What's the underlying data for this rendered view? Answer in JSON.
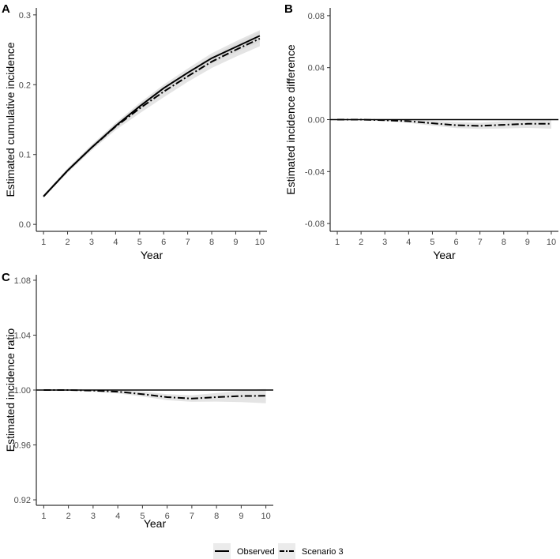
{
  "chart_data": [
    {
      "panel_label": "A",
      "type": "line",
      "xlabel": "Year",
      "ylabel": "Estimated cumulative incidence",
      "x": [
        1,
        2,
        3,
        4,
        5,
        6,
        7,
        8,
        9,
        10
      ],
      "xlim": [
        0.7,
        10.3
      ],
      "ylim": [
        -0.01,
        0.31
      ],
      "yticks": [
        0.0,
        0.1,
        0.2,
        0.3
      ],
      "ytick_labels": [
        "0.0",
        "0.1",
        "0.2",
        "0.3"
      ],
      "reference_line": null,
      "series": [
        {
          "name": "Observed",
          "style": "solid",
          "values": [
            0.04,
            0.077,
            0.11,
            0.141,
            0.169,
            0.195,
            0.217,
            0.238,
            0.254,
            0.27
          ],
          "ci_lower": [
            0.038,
            0.074,
            0.107,
            0.137,
            0.164,
            0.189,
            0.21,
            0.23,
            0.246,
            0.261
          ],
          "ci_upper": [
            0.042,
            0.08,
            0.113,
            0.145,
            0.174,
            0.2,
            0.223,
            0.245,
            0.262,
            0.278
          ]
        },
        {
          "name": "Scenario 3",
          "style": "dashdot",
          "values": [
            0.04,
            0.077,
            0.11,
            0.14,
            0.166,
            0.19,
            0.212,
            0.233,
            0.25,
            0.266
          ],
          "ci_lower": [
            0.038,
            0.074,
            0.106,
            0.135,
            0.159,
            0.182,
            0.204,
            0.224,
            0.24,
            0.255
          ],
          "ci_upper": [
            0.042,
            0.08,
            0.114,
            0.145,
            0.172,
            0.197,
            0.219,
            0.241,
            0.259,
            0.276
          ]
        }
      ]
    },
    {
      "panel_label": "B",
      "type": "line",
      "xlabel": "Year",
      "ylabel": "Estimated incidence difference",
      "x": [
        1,
        2,
        3,
        4,
        5,
        6,
        7,
        8,
        9,
        10
      ],
      "xlim": [
        0.7,
        10.3
      ],
      "ylim": [
        -0.086,
        0.086
      ],
      "yticks": [
        -0.08,
        -0.04,
        0.0,
        0.04,
        0.08
      ],
      "ytick_labels": [
        "-0.08",
        "-0.04",
        "0.00",
        "0.04",
        "0.08"
      ],
      "reference_line": 0,
      "series": [
        {
          "name": "Scenario 3",
          "style": "dashdot",
          "values": [
            0,
            0,
            -0.0005,
            -0.0012,
            -0.0028,
            -0.0043,
            -0.0048,
            -0.004,
            -0.0032,
            -0.0032
          ],
          "ci_lower": [
            0,
            -0.0003,
            -0.0012,
            -0.0025,
            -0.0046,
            -0.0065,
            -0.0072,
            -0.0068,
            -0.0064,
            -0.007
          ],
          "ci_upper": [
            0,
            0.0002,
            0.0001,
            0,
            -0.0008,
            -0.002,
            -0.0024,
            -0.0012,
            -0.0002,
            0.0004
          ]
        }
      ]
    },
    {
      "panel_label": "C",
      "type": "line",
      "xlabel": "Year",
      "ylabel": "Estimated incidence ratio",
      "x": [
        1,
        2,
        3,
        4,
        5,
        6,
        7,
        8,
        9,
        10
      ],
      "xlim": [
        0.7,
        10.3
      ],
      "ylim": [
        0.916,
        1.084
      ],
      "yticks": [
        0.92,
        0.96,
        1.0,
        1.04,
        1.08
      ],
      "ytick_labels": [
        "0.92",
        "0.96",
        "1.00",
        "1.04",
        "1.08"
      ],
      "reference_line": 1,
      "series": [
        {
          "name": "Scenario 3",
          "style": "dashdot",
          "values": [
            1.0,
            1.0,
            0.9996,
            0.9988,
            0.997,
            0.9948,
            0.9938,
            0.9948,
            0.9956,
            0.9958
          ],
          "ci_lower": [
            1.0,
            0.9997,
            0.9988,
            0.9976,
            0.9952,
            0.9926,
            0.9914,
            0.9916,
            0.9912,
            0.9904
          ],
          "ci_upper": [
            1.0,
            1.0002,
            1.0001,
            1.0,
            0.999,
            0.997,
            0.9962,
            0.9978,
            0.9996,
            1.0008
          ]
        }
      ]
    }
  ],
  "legend": {
    "position": "bottom",
    "items": [
      {
        "label": "Observed",
        "style": "solid"
      },
      {
        "label": "Scenario 3",
        "style": "dashdot"
      }
    ]
  },
  "colors": {
    "line": "#000000",
    "band": "#d9d9d9",
    "axis": "#000000",
    "tick_text": "#4d4d4d"
  }
}
